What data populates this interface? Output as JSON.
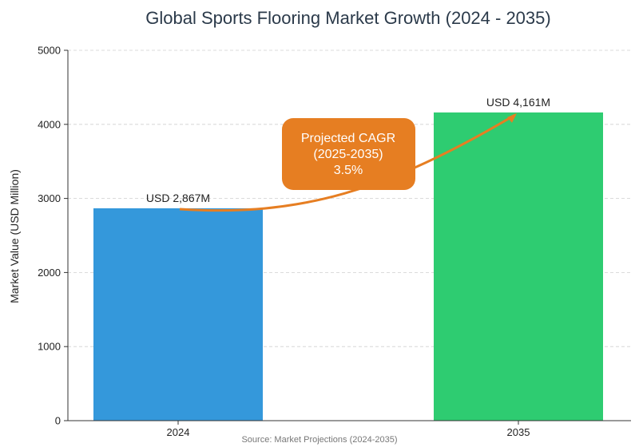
{
  "chart_data": {
    "type": "bar",
    "title": "Global Sports Flooring Market Growth (2024 - 2035)",
    "xlabel": "",
    "ylabel": "Market Value (USD Million)",
    "categories": [
      "2024",
      "2035"
    ],
    "values": [
      2867,
      4161
    ],
    "bar_colors": [
      "#3498db",
      "#2ecc71"
    ],
    "data_labels": [
      "USD 2,867M",
      "USD 4,161M"
    ],
    "ylim": [
      0,
      5000
    ],
    "yticks": [
      0,
      1000,
      2000,
      3000,
      4000,
      5000
    ],
    "ytick_labels": [
      "0",
      "1000",
      "2000",
      "3000",
      "4000",
      "5000"
    ],
    "grid": true,
    "annotation": {
      "lines": [
        "Projected CAGR",
        "(2025-2035)",
        "3.5%"
      ],
      "color": "#e67e22",
      "arrow_from": {
        "category": "2024",
        "value": 2867
      },
      "arrow_to": {
        "category": "2035",
        "value": 4161
      }
    },
    "source": "Source: Market Projections (2024-2035)"
  }
}
